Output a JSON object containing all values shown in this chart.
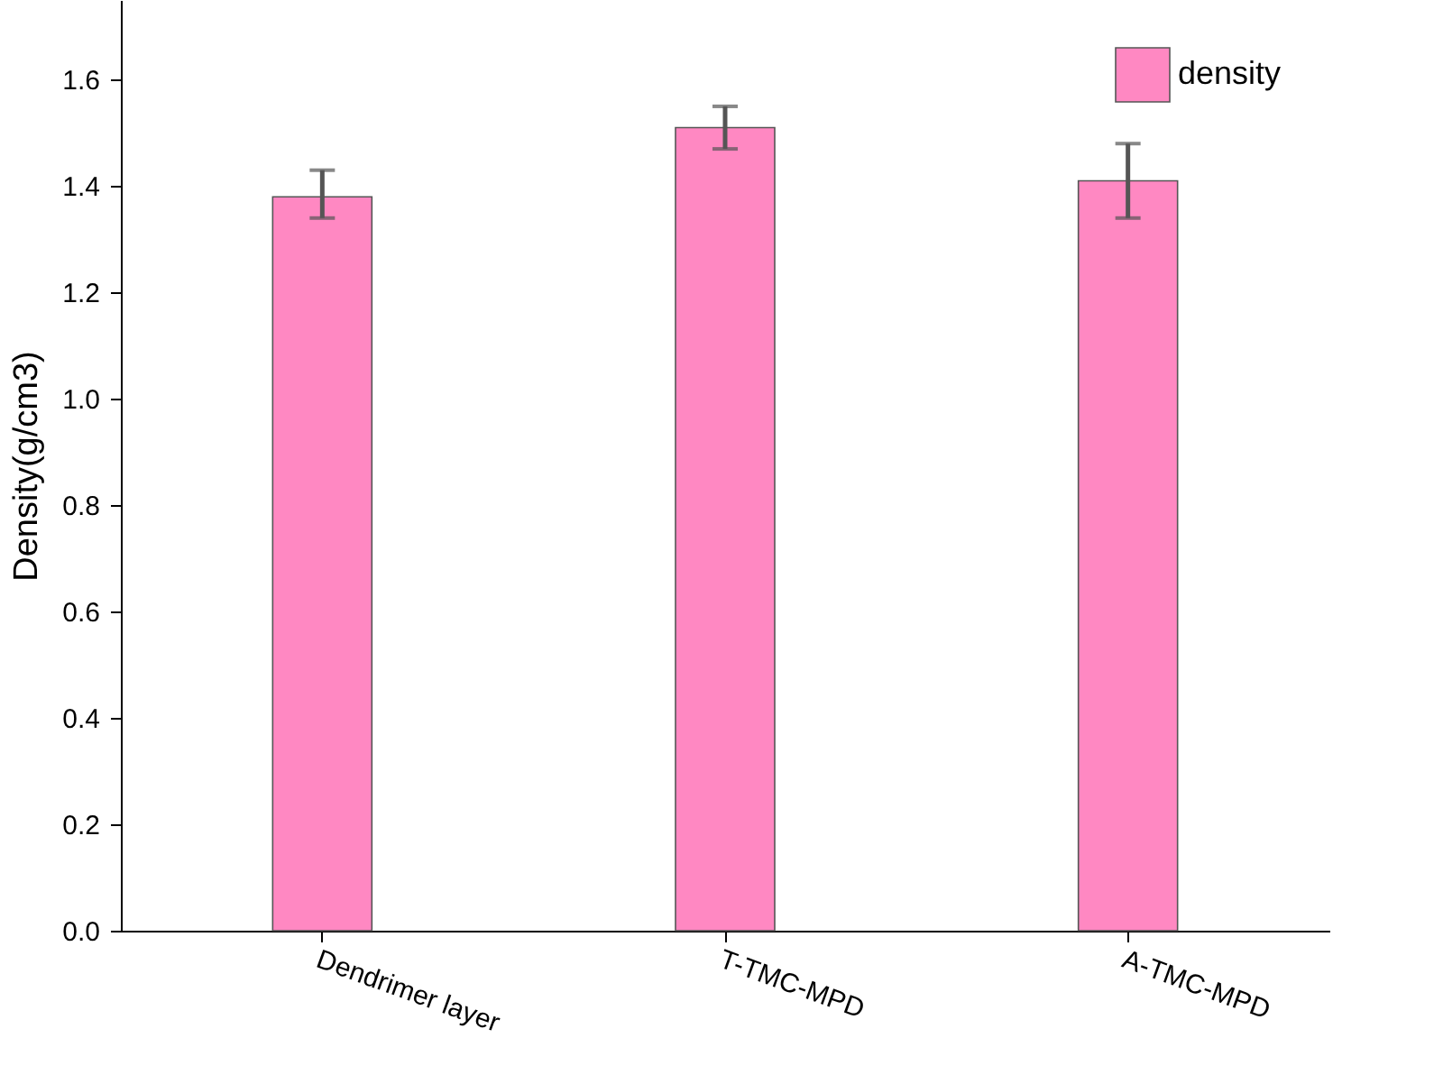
{
  "chart_data": {
    "type": "bar",
    "ylabel": "Density(g/cm3)",
    "categories": [
      "Dendrimer layer",
      "T-TMC-MPD",
      "A-TMC-MPD"
    ],
    "series": [
      {
        "name": "density",
        "color": "#ff88c2",
        "values": [
          1.38,
          1.51,
          1.41
        ],
        "errors": [
          [
            1.34,
            1.43
          ],
          [
            1.47,
            1.55
          ],
          [
            1.34,
            1.48
          ]
        ]
      }
    ],
    "ylim": [
      0,
      1.75
    ],
    "yticks": [
      {
        "value": 0,
        "label": "0.0"
      },
      {
        "value": 0.2,
        "label": "0.2"
      },
      {
        "value": 0.4,
        "label": "0.4"
      },
      {
        "value": 0.6,
        "label": "0.6"
      },
      {
        "value": 0.8,
        "label": "0.8"
      },
      {
        "value": 1,
        "label": "1.0"
      },
      {
        "value": 1.2,
        "label": "1.2"
      },
      {
        "value": 1.4,
        "label": "1.4"
      },
      {
        "value": 1.6,
        "label": "1.6"
      }
    ],
    "grid": false,
    "legend": "top right"
  }
}
